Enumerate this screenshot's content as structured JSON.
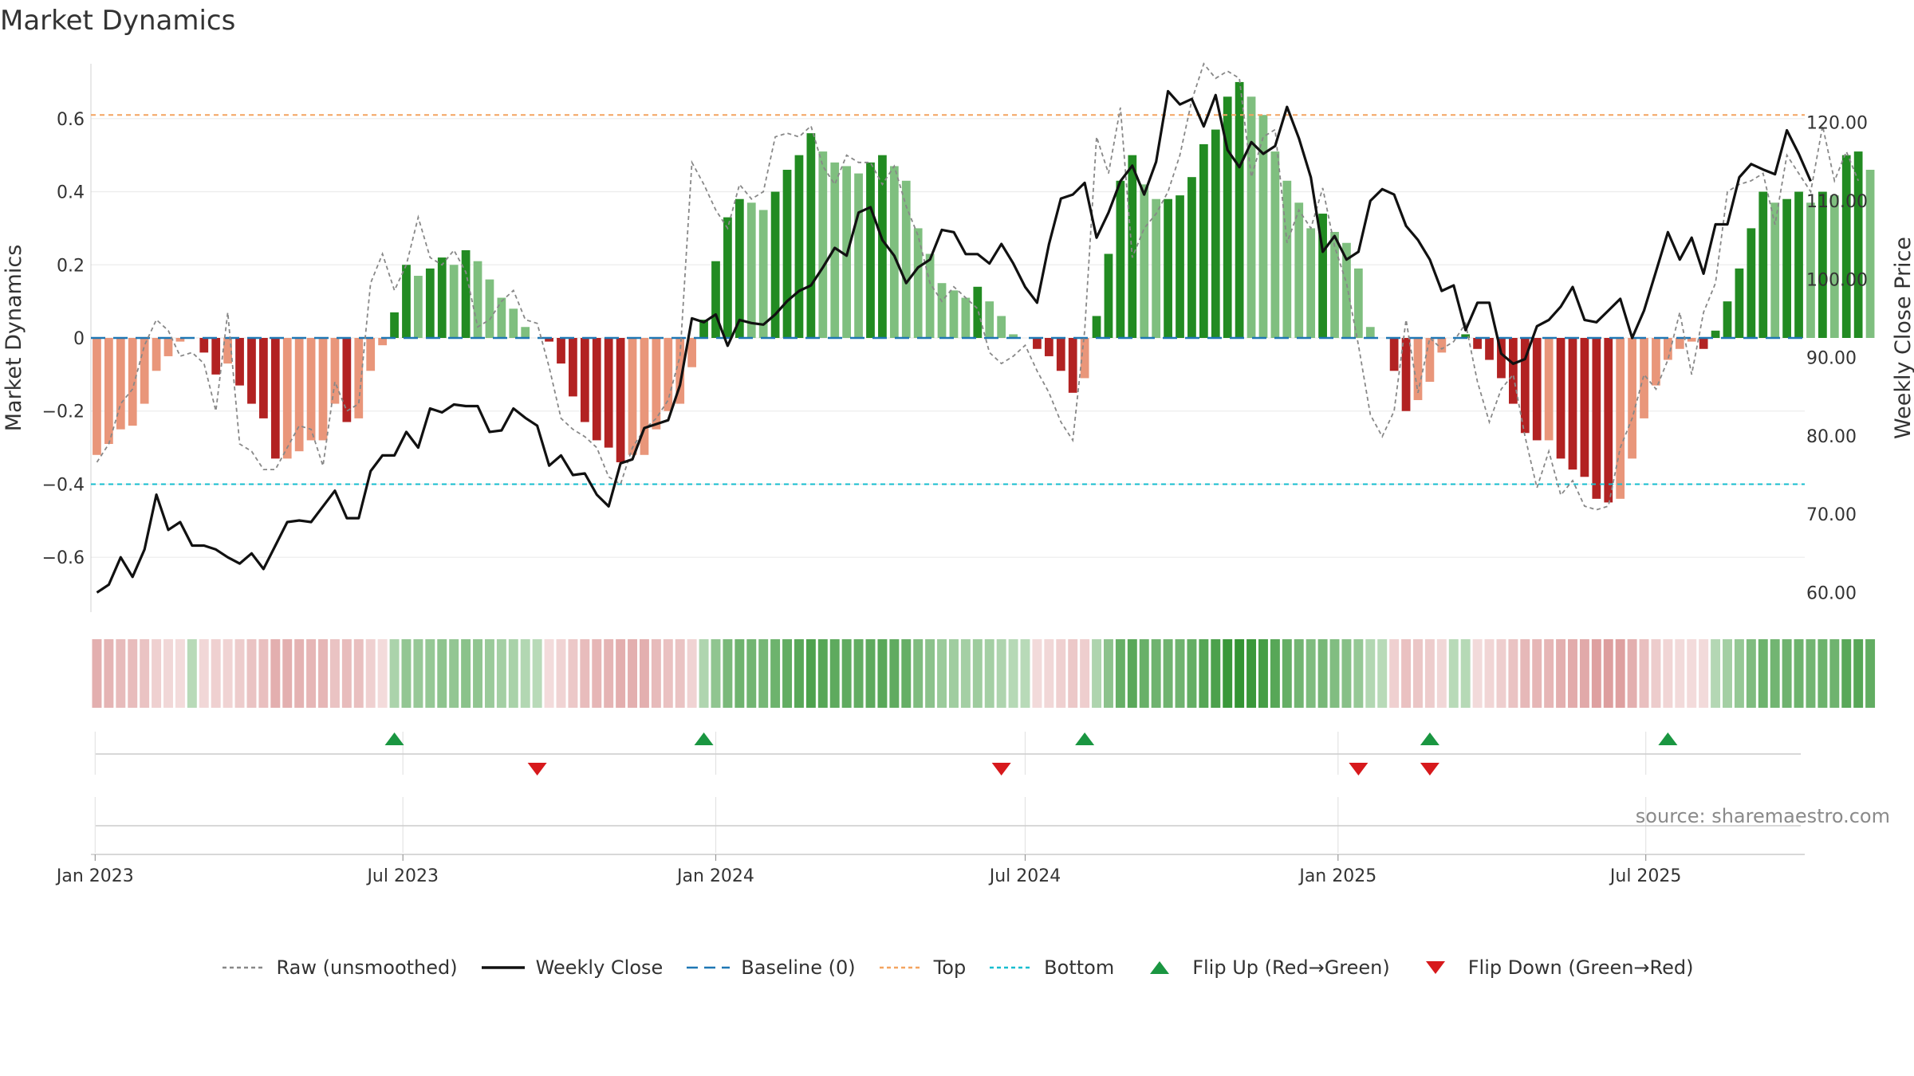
{
  "title": "Market Dynamics",
  "source": "source: sharemaestro.com",
  "chart_data": {
    "type": "bar",
    "weeks_count": 144,
    "start_date": "2023-01-02",
    "oscillator": [
      -0.32,
      -0.29,
      -0.25,
      -0.24,
      -0.18,
      -0.09,
      -0.05,
      -0.01,
      0,
      -0.04,
      -0.1,
      -0.07,
      -0.13,
      -0.18,
      -0.22,
      -0.33,
      -0.33,
      -0.31,
      -0.28,
      -0.28,
      -0.18,
      -0.23,
      -0.22,
      -0.09,
      -0.02,
      0.07,
      0.2,
      0.17,
      0.19,
      0.22,
      0.2,
      0.24,
      0.21,
      0.16,
      0.11,
      0.08,
      0.03,
      0,
      -0.01,
      -0.07,
      -0.16,
      -0.23,
      -0.28,
      -0.3,
      -0.34,
      -0.32,
      -0.32,
      -0.25,
      -0.2,
      -0.18,
      -0.08,
      0.05,
      0.21,
      0.33,
      0.38,
      0.37,
      0.35,
      0.4,
      0.46,
      0.5,
      0.56,
      0.51,
      0.48,
      0.47,
      0.45,
      0.48,
      0.5,
      0.47,
      0.43,
      0.3,
      0.23,
      0.15,
      0.13,
      0.11,
      0.14,
      0.1,
      0.06,
      0.01,
      0,
      -0.03,
      -0.05,
      -0.09,
      -0.15,
      -0.11,
      0.06,
      0.23,
      0.43,
      0.5,
      0.42,
      0.38,
      0.38,
      0.39,
      0.44,
      0.53,
      0.57,
      0.66,
      0.7,
      0.66,
      0.61,
      0.51,
      0.43,
      0.37,
      0.3,
      0.34,
      0.29,
      0.26,
      0.19,
      0.03,
      0,
      -0.09,
      -0.2,
      -0.17,
      -0.12,
      -0.04,
      0,
      0.01,
      -0.03,
      -0.06,
      -0.11,
      -0.18,
      -0.26,
      -0.28,
      -0.28,
      -0.33,
      -0.36,
      -0.38,
      -0.44,
      -0.45,
      -0.44,
      -0.33,
      -0.22,
      -0.13,
      -0.06,
      -0.03,
      -0.01,
      -0.03,
      0.02,
      0.1,
      0.19,
      0.3,
      0.4,
      0.37,
      0.38,
      0.4,
      0.37,
      0.4,
      0.39,
      0.5,
      0.51,
      0.46
    ],
    "raw_unsmoothed": [
      -0.34,
      -0.29,
      -0.18,
      -0.14,
      -0.02,
      0.05,
      0.02,
      -0.05,
      -0.04,
      -0.07,
      -0.2,
      0.07,
      -0.29,
      -0.31,
      -0.36,
      -0.36,
      -0.3,
      -0.24,
      -0.25,
      -0.35,
      -0.12,
      -0.2,
      -0.18,
      0.15,
      0.23,
      0.13,
      0.2,
      0.33,
      0.22,
      0.2,
      0.24,
      0.18,
      0.03,
      0.05,
      0.1,
      0.13,
      0.05,
      0.04,
      -0.08,
      -0.22,
      -0.25,
      -0.27,
      -0.3,
      -0.38,
      -0.4,
      -0.3,
      -0.25,
      -0.22,
      -0.17,
      -0.05,
      0.48,
      0.42,
      0.35,
      0.3,
      0.42,
      0.38,
      0.4,
      0.55,
      0.56,
      0.55,
      0.58,
      0.47,
      0.42,
      0.5,
      0.48,
      0.48,
      0.42,
      0.47,
      0.36,
      0.28,
      0.15,
      0.1,
      0.14,
      0.11,
      0.08,
      -0.04,
      -0.07,
      -0.05,
      -0.02,
      -0.09,
      -0.15,
      -0.23,
      -0.28,
      0.02,
      0.55,
      0.45,
      0.63,
      0.22,
      0.3,
      0.34,
      0.4,
      0.5,
      0.65,
      0.75,
      0.71,
      0.73,
      0.71,
      0.44,
      0.55,
      0.57,
      0.26,
      0.35,
      0.3,
      0.41,
      0.25,
      0.15,
      -0.02,
      -0.21,
      -0.27,
      -0.2,
      0.05,
      -0.15,
      0.0,
      -0.03,
      -0.01,
      0.04,
      -0.12,
      -0.23,
      -0.14,
      -0.1,
      -0.27,
      -0.41,
      -0.31,
      -0.43,
      -0.39,
      -0.46,
      -0.47,
      -0.46,
      -0.3,
      -0.22,
      -0.1,
      -0.14,
      -0.06,
      0.07,
      -0.1,
      0.07,
      0.15,
      0.4,
      0.42,
      0.43,
      0.45,
      0.31,
      0.5,
      0.45,
      0.4,
      0.58,
      0.43,
      0.51,
      0.43
    ],
    "weekly_close": [
      60.0,
      61.0,
      64.5,
      62.0,
      65.5,
      72.5,
      68.0,
      69.0,
      66.0,
      66.0,
      65.5,
      64.5,
      63.7,
      65.0,
      63.0,
      66.0,
      69.0,
      69.2,
      69.0,
      71.0,
      73.0,
      69.5,
      69.5,
      75.5,
      77.5,
      77.5,
      80.5,
      78.5,
      83.5,
      83.0,
      84.0,
      83.8,
      83.8,
      80.5,
      80.7,
      83.5,
      82.3,
      81.3,
      76.2,
      77.5,
      75.0,
      75.2,
      72.5,
      71.0,
      76.5,
      77.0,
      81.0,
      81.5,
      82.0,
      86.5,
      95.0,
      94.5,
      95.5,
      91.5,
      94.8,
      94.4,
      94.2,
      95.5,
      97.2,
      98.5,
      99.2,
      101.5,
      104.0,
      103.0,
      108.5,
      109.2,
      105.0,
      103.0,
      99.5,
      101.5,
      102.5,
      106.3,
      106.0,
      103.2,
      103.2,
      102.0,
      104.5,
      102.0,
      99.0,
      97.0,
      104.5,
      110.3,
      110.8,
      112.3,
      105.3,
      108.5,
      112.5,
      114.5,
      110.8,
      115.0,
      124.0,
      122.3,
      123.0,
      119.5,
      123.5,
      116.5,
      114.3,
      117.5,
      116.0,
      117.0,
      122.0,
      118.0,
      113.0,
      103.5,
      105.5,
      102.5,
      103.5,
      110.0,
      111.5,
      110.8,
      106.8,
      105.0,
      102.5,
      98.5,
      99.2,
      93.5,
      97.0,
      97.0,
      90.5,
      89.2,
      89.8,
      94.0,
      94.8,
      96.5,
      99.0,
      94.8,
      94.5,
      96.0,
      97.5,
      92.5,
      96.0,
      101.0,
      106.0,
      102.5,
      105.3,
      100.7,
      107.0,
      107.0,
      113.0,
      114.7,
      114.0,
      113.4,
      119.0,
      116.0,
      112.5
    ],
    "y_left_range": [
      -0.75,
      0.75
    ],
    "y_left_ticks": [
      "0.6",
      "0.4",
      "0.2",
      "0",
      "−0.2",
      "−0.4",
      "−0.6"
    ],
    "y_right_range": [
      57.5,
      127.5
    ],
    "y_right_ticks": [
      "120.00",
      "110.00",
      "100.00",
      "90.00",
      "80.00",
      "70.00",
      "60.00"
    ],
    "top_threshold": 0.61,
    "bottom_threshold": -0.4,
    "ylabel_left": "Market Dynamics",
    "ylabel_right": "Weekly Close Price",
    "x_ticks": [
      "Jan 2023",
      "Jul 2023",
      "Jan 2024",
      "Jul 2024",
      "Jan 2025",
      "Jul 2025"
    ],
    "flip_up_weeks": [
      25,
      51,
      83,
      112,
      132
    ],
    "flip_down_weeks": [
      37,
      76,
      106,
      112
    ],
    "colors": {
      "pos_strong": "#228b22",
      "pos_weak": "#7fbf7f",
      "neg_strong": "#b22222",
      "neg_weak": "#e9967a",
      "raw": "#888888",
      "close": "#111111",
      "baseline": "#1f77b4",
      "top": "#f4a460",
      "bottom": "#17becf",
      "flip_up": "#1a9641",
      "flip_down": "#d7191c"
    },
    "legend": [
      {
        "key": "raw",
        "label": "Raw (unsmoothed)"
      },
      {
        "key": "close",
        "label": "Weekly Close"
      },
      {
        "key": "baseline",
        "label": "Baseline (0)"
      },
      {
        "key": "top",
        "label": "Top"
      },
      {
        "key": "bottom",
        "label": "Bottom"
      },
      {
        "key": "flip_up",
        "label": "Flip Up (Red→Green)"
      },
      {
        "key": "flip_down",
        "label": "Flip Down (Green→Red)"
      }
    ]
  }
}
